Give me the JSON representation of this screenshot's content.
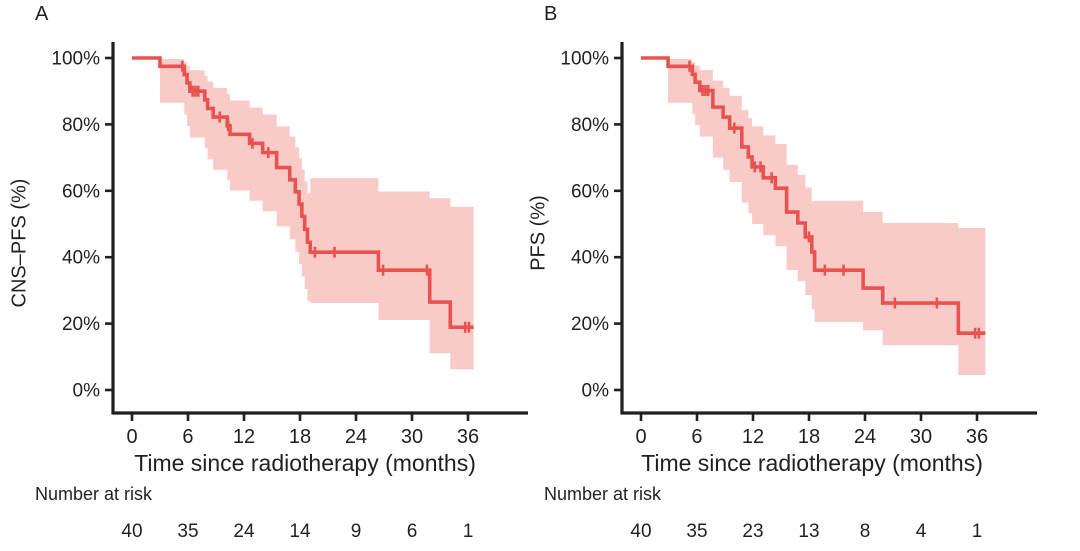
{
  "figure": {
    "accent_color": "#e8534f",
    "band_color": "#f9cbc8",
    "axis_color": "#231f20",
    "background_color": "#ffffff"
  },
  "chart_data": [
    {
      "type": "line",
      "panel_letter": "A",
      "ylabel": "CNS–PFS (%)",
      "xlabel": "Time since radiotherapy (months)",
      "number_at_risk_label": "Number at risk",
      "xticks": [
        0,
        6,
        12,
        18,
        24,
        30,
        36
      ],
      "yticks": [
        [
          0,
          "0%"
        ],
        [
          20,
          "20%"
        ],
        [
          40,
          "40%"
        ],
        [
          60,
          "60%"
        ],
        [
          80,
          "80%"
        ],
        [
          100,
          "100%"
        ]
      ],
      "xlim": [
        0,
        42
      ],
      "ylim": [
        0,
        100
      ],
      "number_at_risk": [
        40,
        35,
        24,
        14,
        9,
        6,
        1
      ],
      "end_time": 36.6,
      "steps": [
        [
          3.0,
          97.5,
          86.5,
          99.7
        ],
        [
          5.6,
          95.0,
          83.0,
          98.8
        ],
        [
          5.9,
          92.5,
          79.5,
          97.6
        ],
        [
          6.2,
          90.0,
          76.0,
          96.3
        ],
        [
          7.8,
          87.4,
          72.8,
          94.6
        ],
        [
          8.1,
          84.8,
          69.5,
          92.9
        ],
        [
          8.7,
          82.2,
          66.3,
          91.0
        ],
        [
          10.2,
          79.6,
          63.2,
          89.1
        ],
        [
          10.5,
          77.0,
          60.1,
          87.2
        ],
        [
          12.6,
          74.3,
          57.0,
          85.1
        ],
        [
          14.0,
          71.5,
          53.8,
          83.0
        ],
        [
          15.5,
          67.0,
          49.3,
          79.4
        ],
        [
          16.9,
          63.3,
          45.4,
          76.3
        ],
        [
          17.5,
          59.7,
          41.6,
          73.1
        ],
        [
          17.9,
          56.0,
          37.9,
          69.8
        ],
        [
          18.2,
          52.3,
          34.2,
          66.4
        ],
        [
          18.5,
          48.4,
          30.4,
          62.8
        ],
        [
          18.8,
          44.5,
          26.7,
          59.2
        ],
        [
          19.1,
          41.5,
          26.2,
          63.8
        ],
        [
          26.4,
          36.1,
          21.1,
          59.8
        ],
        [
          31.9,
          26.5,
          11.1,
          57.8
        ],
        [
          34.1,
          18.9,
          6.2,
          55.2
        ]
      ],
      "censors": [
        [
          5.4,
          97.5
        ],
        [
          6.5,
          90.0
        ],
        [
          6.8,
          90.0
        ],
        [
          7.1,
          90.0
        ],
        [
          9.4,
          82.2
        ],
        [
          10.3,
          79.6
        ],
        [
          12.9,
          74.3
        ],
        [
          14.6,
          71.5
        ],
        [
          19.6,
          41.5
        ],
        [
          21.7,
          41.5
        ],
        [
          26.9,
          36.1
        ],
        [
          31.6,
          36.1
        ],
        [
          35.7,
          18.9
        ],
        [
          36.1,
          18.9
        ]
      ]
    },
    {
      "type": "line",
      "panel_letter": "B",
      "ylabel": "PFS (%)",
      "xlabel": "Time since radiotherapy (months)",
      "number_at_risk_label": "Number at risk",
      "xticks": [
        0,
        6,
        12,
        18,
        24,
        30,
        36
      ],
      "yticks": [
        [
          0,
          "0%"
        ],
        [
          20,
          "20%"
        ],
        [
          40,
          "40%"
        ],
        [
          60,
          "60%"
        ],
        [
          80,
          "80%"
        ],
        [
          100,
          "100%"
        ]
      ],
      "xlim": [
        0,
        42
      ],
      "ylim": [
        0,
        100
      ],
      "number_at_risk": [
        40,
        35,
        23,
        13,
        8,
        4,
        1
      ],
      "end_time": 36.9,
      "steps": [
        [
          2.9,
          97.5,
          86.5,
          99.7
        ],
        [
          5.5,
          95.1,
          83.1,
          98.8
        ],
        [
          5.8,
          92.7,
          79.8,
          97.7
        ],
        [
          6.3,
          90.2,
          76.3,
          96.4
        ],
        [
          7.7,
          85.2,
          70.0,
          93.2
        ],
        [
          8.8,
          82.2,
          66.3,
          91.0
        ],
        [
          9.5,
          78.9,
          62.6,
          88.6
        ],
        [
          10.8,
          73.2,
          56.4,
          84.3
        ],
        [
          11.5,
          70.2,
          53.2,
          81.9
        ],
        [
          11.9,
          67.2,
          50.0,
          79.4
        ],
        [
          13.1,
          63.9,
          46.6,
          76.7
        ],
        [
          14.4,
          60.8,
          43.3,
          74.1
        ],
        [
          15.6,
          53.6,
          36.1,
          67.8
        ],
        [
          16.8,
          50.3,
          32.8,
          64.8
        ],
        [
          17.6,
          46.1,
          28.6,
          61.0
        ],
        [
          18.3,
          41.6,
          24.3,
          56.9
        ],
        [
          18.6,
          36.1,
          20.5,
          57.0
        ],
        [
          23.8,
          30.7,
          18.0,
          53.6
        ],
        [
          25.9,
          26.2,
          13.5,
          50.3
        ],
        [
          34.0,
          17.1,
          4.5,
          48.8
        ]
      ],
      "censors": [
        [
          5.2,
          97.5
        ],
        [
          6.6,
          90.2
        ],
        [
          6.9,
          90.2
        ],
        [
          7.2,
          90.2
        ],
        [
          10.0,
          78.9
        ],
        [
          12.2,
          67.2
        ],
        [
          12.8,
          67.2
        ],
        [
          14.0,
          63.9
        ],
        [
          18.0,
          46.1
        ],
        [
          19.7,
          36.1
        ],
        [
          21.7,
          36.1
        ],
        [
          27.2,
          26.2
        ],
        [
          31.7,
          26.2
        ],
        [
          35.8,
          17.1
        ],
        [
          36.2,
          17.1
        ]
      ]
    }
  ]
}
